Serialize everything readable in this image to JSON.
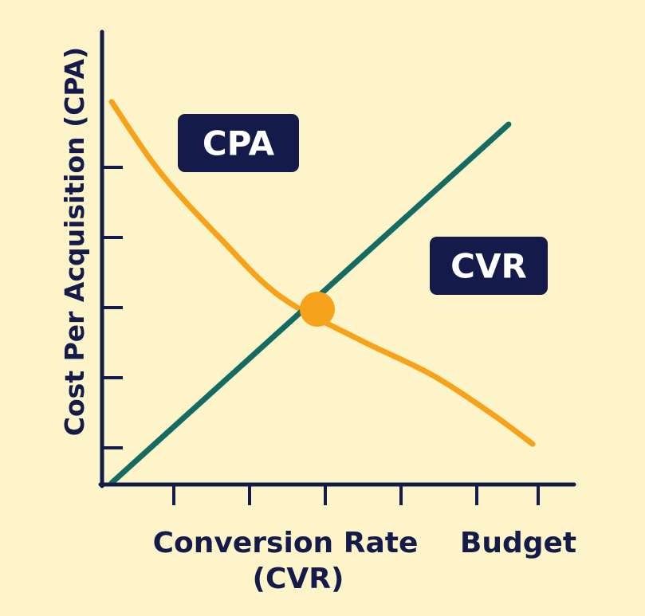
{
  "chart_data": {
    "type": "line",
    "title": "",
    "ylabel": "Cost Per Acquisition (CPA)",
    "xlabel_lines": [
      "Conversion Rate",
      "(CVR)"
    ],
    "x_end_label": "Budget",
    "xlim": [
      0,
      10
    ],
    "ylim": [
      0,
      10
    ],
    "x_ticks": [
      1,
      2,
      3,
      4,
      5,
      6,
      7
    ],
    "y_ticks": [
      1,
      2,
      3,
      4,
      5
    ],
    "series": [
      {
        "name": "CPA",
        "color": "#f7a21b",
        "x": [
          0.2,
          1.0,
          2.0,
          3.0,
          4.3,
          5.5,
          6.5,
          7.2
        ],
        "y": [
          9.8,
          8.0,
          6.3,
          4.8,
          3.7,
          2.8,
          1.8,
          1.0
        ]
      },
      {
        "name": "CVR",
        "color": "#136b62",
        "x": [
          0.2,
          7.0
        ],
        "y": [
          0.0,
          10.0
        ]
      }
    ],
    "intersection": {
      "x": 3.4,
      "y": 4.4,
      "color": "#f7a21b"
    },
    "labels": [
      {
        "text": "CPA",
        "series": "CPA",
        "at_x": 1.9,
        "at_y": 8.7,
        "bg": "#141a4a"
      },
      {
        "text": "CVR",
        "series": "CVR",
        "at_x": 5.4,
        "at_y": 6.4,
        "bg": "#141a4a"
      }
    ],
    "grid": false,
    "axis_color": "#141a4a"
  }
}
